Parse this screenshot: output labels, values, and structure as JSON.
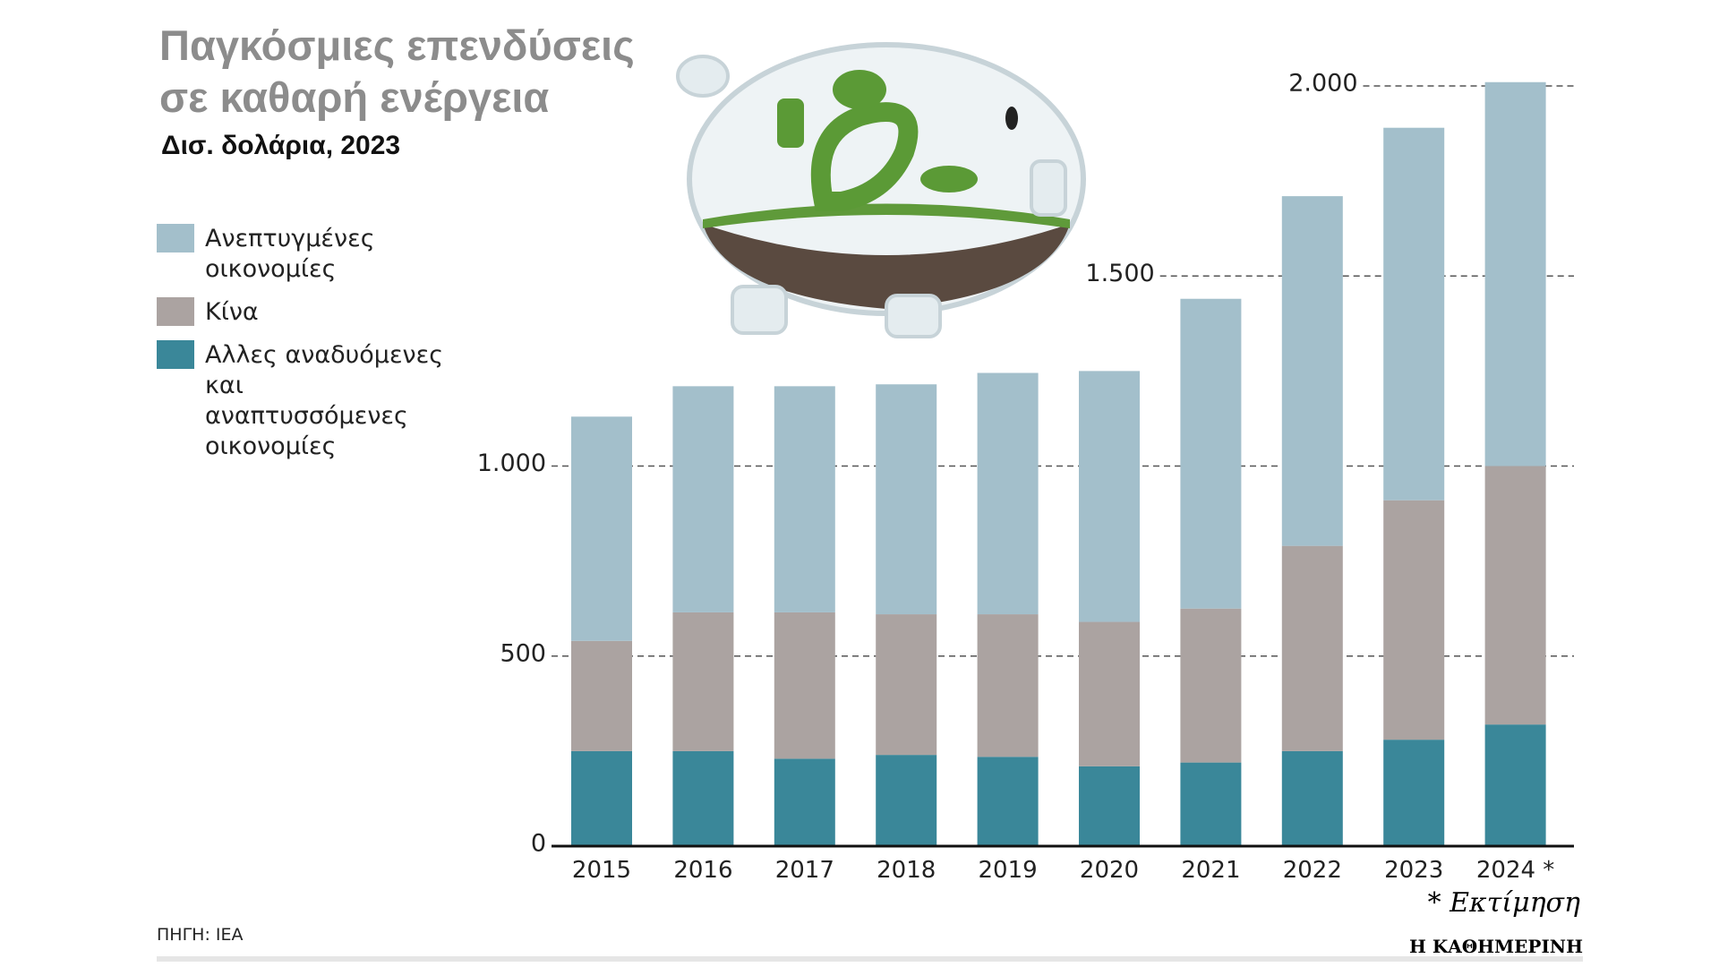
{
  "chart_data": {
    "type": "stacked-bar",
    "title": "Παγκόσμιες επενδύσεις σε καθαρή ενέργεια",
    "subtitle": "Δισ. δολάρια, 2023",
    "categories": [
      "2015",
      "2016",
      "2017",
      "2018",
      "2019",
      "2020",
      "2021",
      "2022",
      "2023",
      "2024 *"
    ],
    "series": [
      {
        "name": "Ανεπτυγμένες οικονομίες",
        "color": "#a3bfcb",
        "values": [
          590,
          595,
          595,
          605,
          635,
          660,
          815,
          920,
          980,
          1010
        ]
      },
      {
        "name": "Κίνα",
        "color": "#aba3a1",
        "values": [
          290,
          365,
          385,
          370,
          375,
          380,
          405,
          540,
          630,
          680
        ]
      },
      {
        "name": "Αλλες αναδυόμενες και αναπτυσσόμενες οικονομίες",
        "color": "#3a8799",
        "values": [
          250,
          250,
          230,
          240,
          235,
          210,
          220,
          250,
          280,
          320
        ]
      }
    ],
    "ylim": [
      0,
      2000
    ],
    "yticks": [
      0,
      500,
      {
        "value": 1000,
        "label": "1.000"
      },
      {
        "value": 1500,
        "label": "1.500"
      },
      {
        "value": 2000,
        "label": "2.000"
      }
    ],
    "grid": true,
    "footnote": "* Εκτίμηση",
    "source": "ΠΗΓΗ: IEA",
    "publisher": "Η ΚΑΘΗΜΕΡΙΝΗ"
  }
}
